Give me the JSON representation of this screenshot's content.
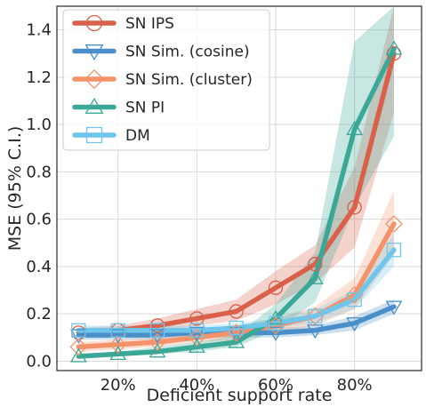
{
  "chart_data": {
    "type": "line",
    "xlabel": "Deficient support rate",
    "ylabel": "MSE (95% C.I.)",
    "x": [
      10,
      20,
      30,
      40,
      50,
      60,
      70,
      80,
      90
    ],
    "x_tick_values": [
      20,
      40,
      60,
      80
    ],
    "x_tick_labels": [
      "20%",
      "40%",
      "60%",
      "80%"
    ],
    "xlim": [
      4.5,
      97
    ],
    "ylim": [
      -0.04,
      1.5
    ],
    "y_tick_values": [
      0.0,
      0.2,
      0.4,
      0.6,
      0.8,
      1.0,
      1.2,
      1.4
    ],
    "y_tick_labels": [
      "0.0",
      "0.2",
      "0.4",
      "0.6",
      "0.8",
      "1.0",
      "1.2",
      "1.4"
    ],
    "grid": true,
    "legend_position": "top-left",
    "series": [
      {
        "name": "SN IPS",
        "color": "#d9604a",
        "marker": "circle",
        "values": [
          0.12,
          0.13,
          0.15,
          0.18,
          0.21,
          0.31,
          0.41,
          0.65,
          1.3
        ],
        "ci_low": [
          0.1,
          0.11,
          0.12,
          0.15,
          0.17,
          0.24,
          0.33,
          0.48,
          1.05
        ],
        "ci_high": [
          0.14,
          0.15,
          0.18,
          0.22,
          0.26,
          0.38,
          0.49,
          0.82,
          1.5
        ]
      },
      {
        "name": "SN Sim. (cosine)",
        "color": "#4a8fc9",
        "marker": "triangle-down",
        "values": [
          0.11,
          0.11,
          0.11,
          0.12,
          0.12,
          0.12,
          0.13,
          0.16,
          0.23
        ],
        "ci_low": [
          0.09,
          0.09,
          0.09,
          0.1,
          0.1,
          0.1,
          0.11,
          0.13,
          0.2
        ],
        "ci_high": [
          0.13,
          0.13,
          0.13,
          0.14,
          0.14,
          0.14,
          0.15,
          0.19,
          0.26
        ]
      },
      {
        "name": "SN Sim. (cluster)",
        "color": "#f4936b",
        "marker": "diamond",
        "values": [
          0.06,
          0.07,
          0.08,
          0.1,
          0.12,
          0.15,
          0.19,
          0.28,
          0.58
        ],
        "ci_low": [
          0.04,
          0.05,
          0.06,
          0.08,
          0.09,
          0.12,
          0.15,
          0.22,
          0.45
        ],
        "ci_high": [
          0.08,
          0.09,
          0.1,
          0.12,
          0.15,
          0.18,
          0.23,
          0.35,
          0.72
        ]
      },
      {
        "name": "SN PI",
        "color": "#3ba797",
        "marker": "triangle-up",
        "values": [
          0.02,
          0.03,
          0.04,
          0.06,
          0.08,
          0.18,
          0.35,
          0.98,
          1.32
        ],
        "ci_low": [
          0.01,
          0.02,
          0.03,
          0.04,
          0.06,
          0.13,
          0.25,
          0.65,
          0.95
        ],
        "ci_high": [
          0.03,
          0.04,
          0.06,
          0.08,
          0.11,
          0.24,
          0.46,
          1.35,
          1.5
        ]
      },
      {
        "name": "DM",
        "color": "#6ec6ea",
        "marker": "square",
        "values": [
          0.13,
          0.13,
          0.13,
          0.13,
          0.14,
          0.16,
          0.19,
          0.26,
          0.47
        ],
        "ci_low": [
          0.11,
          0.11,
          0.11,
          0.11,
          0.12,
          0.14,
          0.16,
          0.22,
          0.4
        ],
        "ci_high": [
          0.15,
          0.15,
          0.15,
          0.15,
          0.16,
          0.18,
          0.22,
          0.3,
          0.54
        ]
      }
    ]
  }
}
